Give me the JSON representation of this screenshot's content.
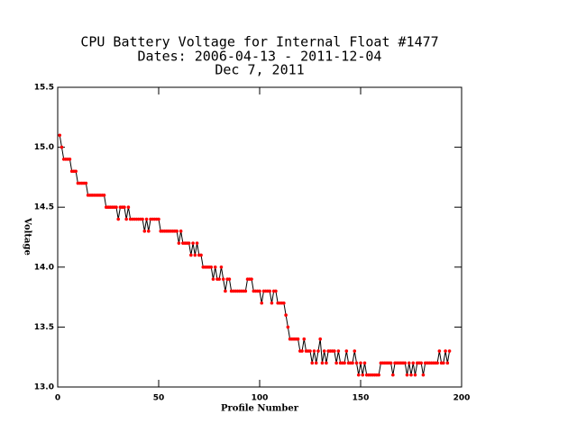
{
  "chart_data": {
    "type": "line",
    "title": [
      "CPU Battery Voltage for Internal Float #1477",
      "Dates:  2006-04-13 -  2011-12-04",
      "Dec  7, 2011"
    ],
    "xlabel": "Profile Number",
    "ylabel": "Voltage",
    "xlim": [
      0,
      200
    ],
    "xticks": [
      0,
      50,
      100,
      150,
      200
    ],
    "ylim": [
      13,
      15.5
    ],
    "yticks": [
      {
        "value": 13,
        "label": "13.0"
      },
      13.5,
      {
        "value": 14,
        "label": "14.0"
      },
      14.5,
      {
        "value": 15,
        "label": "15.0"
      },
      15.5
    ],
    "series": [
      {
        "line_color": "#000000",
        "marker_color": "#ff0000",
        "x": [
          1,
          2,
          3,
          4,
          5,
          6,
          7,
          8,
          9,
          10,
          11,
          12,
          13,
          14,
          15,
          16,
          17,
          18,
          19,
          20,
          21,
          22,
          23,
          24,
          25,
          26,
          27,
          28,
          29,
          30,
          31,
          32,
          33,
          34,
          35,
          36,
          37,
          38,
          39,
          40,
          41,
          42,
          43,
          44,
          45,
          46,
          47,
          48,
          49,
          50,
          51,
          52,
          53,
          54,
          55,
          56,
          57,
          58,
          59,
          60,
          61,
          62,
          63,
          64,
          65,
          66,
          67,
          68,
          69,
          70,
          71,
          72,
          73,
          74,
          75,
          76,
          77,
          78,
          79,
          80,
          81,
          82,
          83,
          84,
          85,
          86,
          87,
          88,
          89,
          90,
          91,
          92,
          93,
          94,
          95,
          96,
          97,
          98,
          99,
          100,
          101,
          102,
          103,
          104,
          105,
          106,
          107,
          108,
          109,
          110,
          111,
          112,
          113,
          114,
          115,
          116,
          117,
          118,
          119,
          120,
          121,
          122,
          123,
          124,
          125,
          126,
          127,
          128,
          129,
          130,
          131,
          132,
          133,
          134,
          135,
          136,
          137,
          138,
          139,
          140,
          141,
          142,
          143,
          144,
          145,
          146,
          147,
          148,
          149,
          150,
          151,
          152,
          153,
          154,
          155,
          156,
          157,
          158,
          159,
          160,
          161,
          162,
          163,
          164,
          165,
          166,
          167,
          168,
          169,
          170,
          171,
          172,
          173,
          174,
          175,
          176,
          177,
          178,
          179,
          180,
          181,
          182,
          183,
          184,
          185,
          186,
          187,
          188,
          189,
          190,
          191,
          192,
          193,
          194
        ],
        "values": [
          15.1,
          15.0,
          14.9,
          14.9,
          14.9,
          14.9,
          14.8,
          14.8,
          14.8,
          14.7,
          14.7,
          14.7,
          14.7,
          14.7,
          14.6,
          14.6,
          14.6,
          14.6,
          14.6,
          14.6,
          14.6,
          14.6,
          14.6,
          14.5,
          14.5,
          14.5,
          14.5,
          14.5,
          14.5,
          14.4,
          14.5,
          14.5,
          14.5,
          14.4,
          14.5,
          14.4,
          14.4,
          14.4,
          14.4,
          14.4,
          14.4,
          14.4,
          14.3,
          14.4,
          14.3,
          14.4,
          14.4,
          14.4,
          14.4,
          14.4,
          14.3,
          14.3,
          14.3,
          14.3,
          14.3,
          14.3,
          14.3,
          14.3,
          14.3,
          14.2,
          14.3,
          14.2,
          14.2,
          14.2,
          14.2,
          14.1,
          14.2,
          14.1,
          14.2,
          14.1,
          14.1,
          14.0,
          14.0,
          14.0,
          14.0,
          14.0,
          13.9,
          14.0,
          13.9,
          13.9,
          14.0,
          13.9,
          13.8,
          13.9,
          13.9,
          13.8,
          13.8,
          13.8,
          13.8,
          13.8,
          13.8,
          13.8,
          13.8,
          13.9,
          13.9,
          13.9,
          13.8,
          13.8,
          13.8,
          13.8,
          13.7,
          13.8,
          13.8,
          13.8,
          13.8,
          13.7,
          13.8,
          13.8,
          13.7,
          13.7,
          13.7,
          13.7,
          13.6,
          13.5,
          13.4,
          13.4,
          13.4,
          13.4,
          13.4,
          13.3,
          13.3,
          13.4,
          13.3,
          13.3,
          13.3,
          13.2,
          13.3,
          13.2,
          13.3,
          13.4,
          13.2,
          13.3,
          13.2,
          13.3,
          13.3,
          13.3,
          13.3,
          13.2,
          13.3,
          13.2,
          13.2,
          13.2,
          13.3,
          13.2,
          13.2,
          13.2,
          13.3,
          13.2,
          13.1,
          13.2,
          13.1,
          13.2,
          13.1,
          13.1,
          13.1,
          13.1,
          13.1,
          13.1,
          13.1,
          13.2,
          13.2,
          13.2,
          13.2,
          13.2,
          13.2,
          13.1,
          13.2,
          13.2,
          13.2,
          13.2,
          13.2,
          13.2,
          13.1,
          13.2,
          13.1,
          13.2,
          13.1,
          13.2,
          13.2,
          13.2,
          13.1,
          13.2,
          13.2,
          13.2,
          13.2,
          13.2,
          13.2,
          13.2,
          13.3,
          13.2,
          13.2,
          13.3,
          13.2,
          13.3
        ]
      }
    ]
  }
}
